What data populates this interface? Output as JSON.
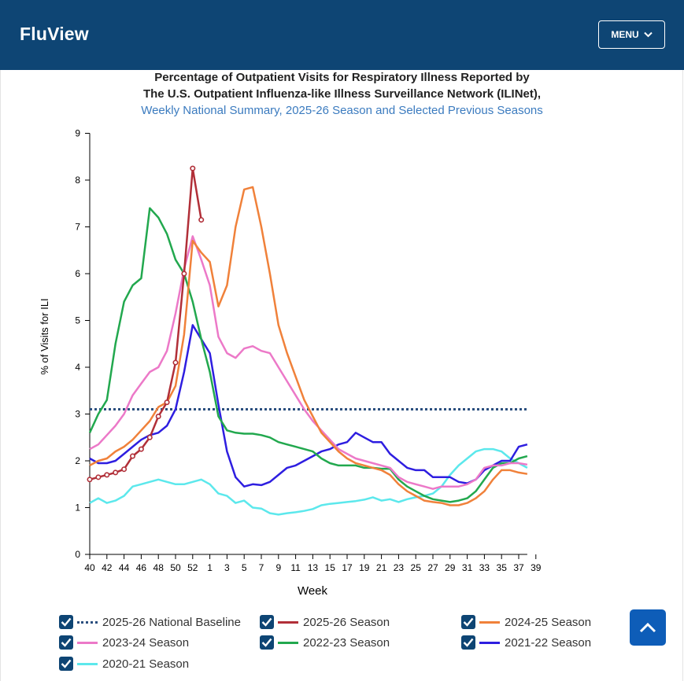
{
  "header": {
    "logo": "FluView",
    "menu_label": "MENU"
  },
  "chart_data": {
    "type": "line",
    "title": "Percentage of Outpatient Visits for Respiratory Illness Reported by",
    "title_line2": "The U.S. Outpatient Influenza-like Illness Surveillance Network (ILINet),",
    "subtitle": "Weekly National Summary, 2025-26 Season and Selected Previous Seasons",
    "xlabel": "Week",
    "ylabel": "% of Visits for ILI",
    "ylim": [
      0,
      9
    ],
    "yticks": [
      0,
      1,
      2,
      3,
      4,
      5,
      6,
      7,
      8,
      9
    ],
    "xticks": [
      "40",
      "42",
      "44",
      "46",
      "48",
      "50",
      "52",
      "1",
      "3",
      "5",
      "7",
      "9",
      "11",
      "13",
      "15",
      "17",
      "19",
      "21",
      "23",
      "25",
      "27",
      "29",
      "31",
      "33",
      "35",
      "37",
      "39"
    ],
    "baseline": {
      "name": "2025-26 National Baseline",
      "value": 3.1,
      "color": "#2a4e7e"
    },
    "series": [
      {
        "name": "2020-21 Season",
        "color": "#5ce8ec",
        "values": [
          1.1,
          1.2,
          1.1,
          1.15,
          1.25,
          1.45,
          1.5,
          1.55,
          1.6,
          1.55,
          1.5,
          1.5,
          1.55,
          1.6,
          1.5,
          1.3,
          1.25,
          1.1,
          1.15,
          1.0,
          0.98,
          0.88,
          0.85,
          0.88,
          0.9,
          0.93,
          0.97,
          1.05,
          1.08,
          1.1,
          1.12,
          1.14,
          1.17,
          1.22,
          1.15,
          1.18,
          1.12,
          1.18,
          1.22,
          1.25,
          1.3,
          1.45,
          1.7,
          1.9,
          2.05,
          2.2,
          2.25,
          2.25,
          2.2,
          2.05,
          1.95,
          1.85
        ]
      },
      {
        "name": "2021-22 Season",
        "color": "#2e1ee0",
        "values": [
          2.05,
          1.95,
          1.95,
          2.0,
          2.15,
          2.3,
          2.45,
          2.55,
          2.6,
          2.75,
          3.1,
          3.9,
          4.9,
          4.6,
          4.3,
          3.2,
          2.2,
          1.65,
          1.45,
          1.5,
          1.48,
          1.55,
          1.7,
          1.85,
          1.9,
          2.0,
          2.1,
          2.2,
          2.25,
          2.35,
          2.4,
          2.6,
          2.5,
          2.4,
          2.4,
          2.15,
          2.0,
          1.85,
          1.8,
          1.8,
          1.65,
          1.65,
          1.65,
          1.55,
          1.52,
          1.6,
          1.8,
          1.9,
          2.0,
          2.0,
          2.3,
          2.35
        ]
      },
      {
        "name": "2022-23 Season",
        "color": "#22a84e",
        "values": [
          2.6,
          3.0,
          3.3,
          4.5,
          5.4,
          5.75,
          5.9,
          7.4,
          7.2,
          6.85,
          6.3,
          6.0,
          5.4,
          4.6,
          3.9,
          2.95,
          2.65,
          2.6,
          2.58,
          2.58,
          2.55,
          2.5,
          2.4,
          2.35,
          2.3,
          2.25,
          2.2,
          2.05,
          1.95,
          1.9,
          1.9,
          1.9,
          1.85,
          1.85,
          1.83,
          1.83,
          1.6,
          1.45,
          1.35,
          1.25,
          1.18,
          1.15,
          1.12,
          1.15,
          1.2,
          1.35,
          1.6,
          1.85,
          1.95,
          1.95,
          2.05,
          2.1
        ]
      },
      {
        "name": "2023-24 Season",
        "color": "#ec79c8",
        "values": [
          2.25,
          2.35,
          2.55,
          2.75,
          3.0,
          3.4,
          3.65,
          3.9,
          4.0,
          4.35,
          5.15,
          6.1,
          6.8,
          6.3,
          5.75,
          4.65,
          4.3,
          4.2,
          4.4,
          4.45,
          4.35,
          4.3,
          4.0,
          3.7,
          3.4,
          3.1,
          2.85,
          2.65,
          2.45,
          2.25,
          2.15,
          2.05,
          2.0,
          1.95,
          1.9,
          1.85,
          1.65,
          1.55,
          1.5,
          1.45,
          1.4,
          1.45,
          1.45,
          1.45,
          1.5,
          1.6,
          1.85,
          1.9,
          1.9,
          1.95,
          1.95,
          1.92
        ]
      },
      {
        "name": "2024-25 Season",
        "color": "#f0813a",
        "values": [
          1.9,
          2.0,
          2.05,
          2.2,
          2.3,
          2.45,
          2.65,
          2.85,
          3.15,
          3.25,
          3.6,
          4.7,
          6.7,
          6.45,
          6.25,
          5.3,
          5.75,
          7.0,
          7.8,
          7.85,
          7.0,
          6.0,
          4.9,
          4.3,
          3.8,
          3.3,
          2.95,
          2.6,
          2.4,
          2.2,
          2.05,
          1.95,
          1.9,
          1.85,
          1.8,
          1.7,
          1.5,
          1.35,
          1.25,
          1.15,
          1.12,
          1.1,
          1.05,
          1.05,
          1.1,
          1.2,
          1.35,
          1.6,
          1.8,
          1.8,
          1.75,
          1.72
        ]
      },
      {
        "name": "2025-26 Season",
        "color": "#b12f38",
        "markers": true,
        "values": [
          1.6,
          1.65,
          1.7,
          1.75,
          1.82,
          2.1,
          2.25,
          2.5,
          2.95,
          3.25,
          4.1,
          6.0,
          8.25,
          7.15
        ]
      }
    ]
  },
  "legend": [
    {
      "label": "2025-26 National Baseline",
      "color": "#2a4e7e",
      "dotted": true
    },
    {
      "label": "2025-26 Season",
      "color": "#b12f38",
      "dotted": false
    },
    {
      "label": "2024-25 Season",
      "color": "#f0813a",
      "dotted": false
    },
    {
      "label": "2023-24 Season",
      "color": "#ec79c8",
      "dotted": false
    },
    {
      "label": "2022-23 Season",
      "color": "#22a84e",
      "dotted": false
    },
    {
      "label": "2021-22 Season",
      "color": "#2e1ee0",
      "dotted": false
    },
    {
      "label": "2020-21 Season",
      "color": "#5ce8ec",
      "dotted": false
    }
  ],
  "accent": "#0e4574",
  "back_to_top_icon": "chevron-up-icon"
}
